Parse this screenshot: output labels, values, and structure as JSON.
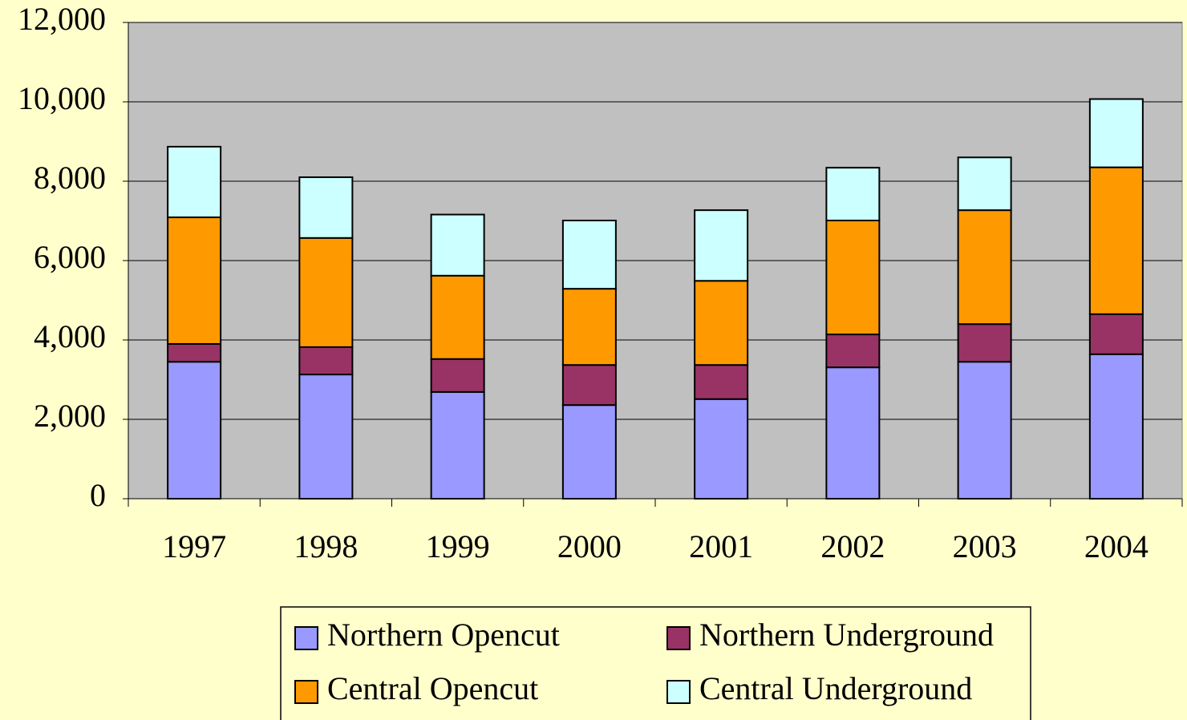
{
  "chart_data": {
    "type": "stacked-bar",
    "categories": [
      "1997",
      "1998",
      "1999",
      "2000",
      "2001",
      "2002",
      "2003",
      "2004"
    ],
    "series": [
      {
        "name": "Northern Opencut",
        "color": "#9999ff",
        "values": [
          3450,
          3130,
          2690,
          2360,
          2510,
          3310,
          3450,
          3640
        ]
      },
      {
        "name": "Northern Underground",
        "color": "#993366",
        "values": [
          450,
          690,
          830,
          1010,
          860,
          830,
          950,
          1010
        ]
      },
      {
        "name": "Central Opencut",
        "color": "#ff9900",
        "values": [
          3190,
          2750,
          2100,
          1920,
          2120,
          2870,
          2870,
          3700
        ]
      },
      {
        "name": "Central Underground",
        "color": "#ccffff",
        "values": [
          1780,
          1530,
          1540,
          1720,
          1780,
          1330,
          1330,
          1720
        ]
      }
    ],
    "ylim": [
      0,
      12000
    ],
    "yticks": [
      0,
      {
        "value": 2000,
        "label": "2,000"
      },
      {
        "value": 4000,
        "label": "4,000"
      },
      {
        "value": 6000,
        "label": "6,000"
      },
      {
        "value": 8000,
        "label": "8,000"
      },
      {
        "value": 10000,
        "label": "10,000"
      },
      {
        "value": 12000,
        "label": "12,000"
      }
    ],
    "grid": true,
    "legend": "bottom"
  }
}
